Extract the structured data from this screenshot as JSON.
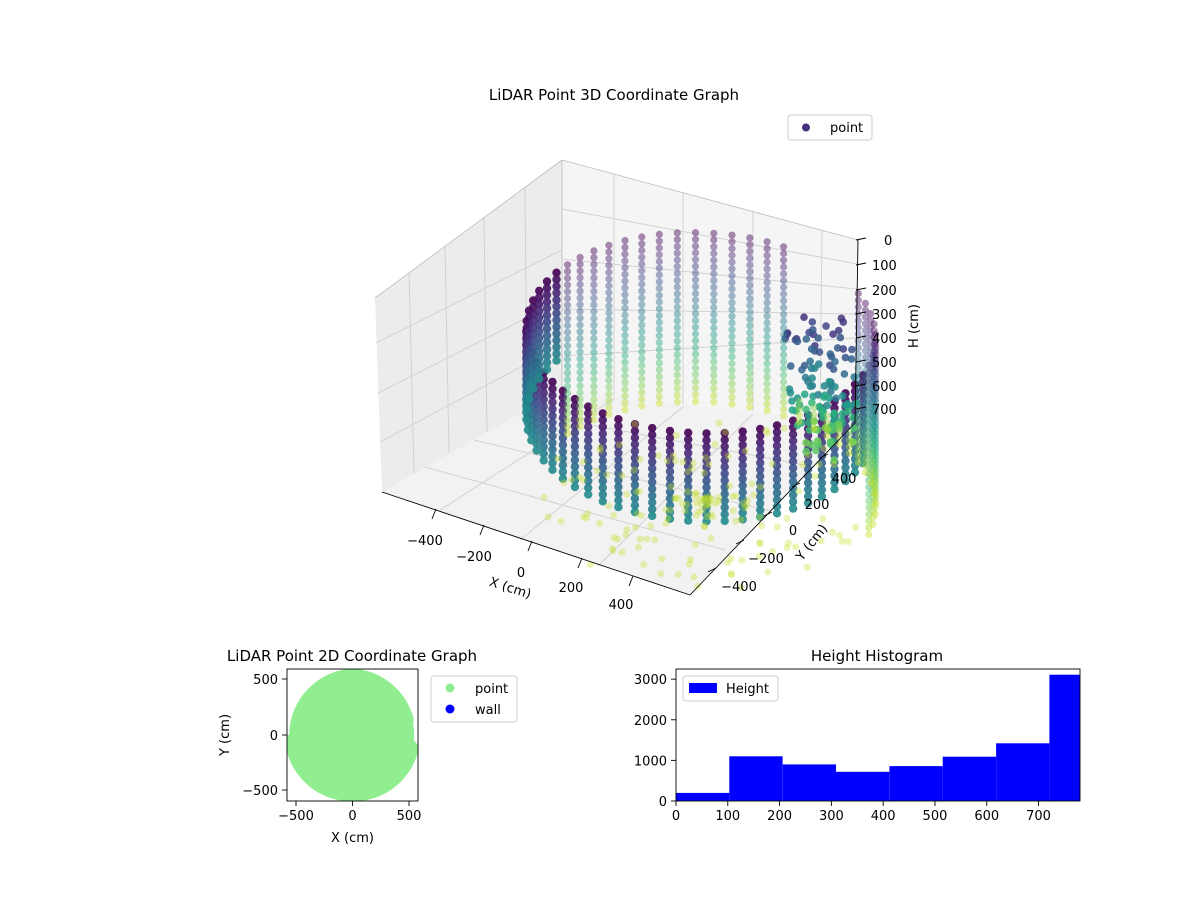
{
  "chart_data": [
    {
      "type": "scatter",
      "projection": "3d",
      "title": "LiDAR Point 3D Coordinate Graph",
      "xlabel": "X (cm)",
      "ylabel": "Y (cm)",
      "zlabel": "H (cm)",
      "x_ticks": [
        -400,
        -200,
        0,
        200,
        400
      ],
      "y_ticks": [
        -400,
        -200,
        0,
        200,
        400
      ],
      "z_ticks": [
        0,
        100,
        200,
        300,
        400,
        500,
        600,
        700
      ],
      "x_tick_labels": [
        "−400",
        "−200",
        "0",
        "200",
        "400"
      ],
      "y_tick_labels": [
        "−400",
        "−200",
        "0",
        "200",
        "400"
      ],
      "z_tick_labels": [
        "0",
        "100",
        "200",
        "300",
        "400",
        "500",
        "600",
        "700"
      ],
      "xlim": [
        -560,
        560
      ],
      "ylim": [
        -560,
        560
      ],
      "zlim": [
        0,
        720
      ],
      "z_inverted": true,
      "colormap": "viridis",
      "legend": [
        {
          "label": "point",
          "color": "#46327e"
        }
      ],
      "legend_position": "upper-right",
      "series": [
        {
          "name": "point",
          "description": "Ring of LiDAR returns around the room wall; radius about 560 cm, heights 0-700 cm, colored by height"
        }
      ],
      "grid": true
    },
    {
      "type": "scatter",
      "title": "LiDAR Point 2D Coordinate Graph",
      "xlabel": "X (cm)",
      "ylabel": "Y (cm)",
      "x_ticks": [
        -500,
        0,
        500
      ],
      "y_ticks": [
        -500,
        0,
        500
      ],
      "x_tick_labels": [
        "−500",
        "0",
        "500"
      ],
      "y_tick_labels": [
        "−500",
        "0",
        "500"
      ],
      "xlim": [
        -590,
        590
      ],
      "ylim": [
        -590,
        590
      ],
      "series": [
        {
          "name": "point",
          "color": "#90ee90"
        },
        {
          "name": "wall",
          "color": "#0000ff"
        }
      ],
      "legend_position": "outside-upper-right"
    },
    {
      "type": "bar",
      "subtype": "histogram",
      "title": "Height Histogram",
      "xlim": [
        0,
        780
      ],
      "ylim": [
        0,
        3250
      ],
      "x_ticks": [
        0,
        100,
        200,
        300,
        400,
        500,
        600,
        700
      ],
      "y_ticks": [
        0,
        1000,
        2000,
        3000
      ],
      "x_tick_labels": [
        "0",
        "100",
        "200",
        "300",
        "400",
        "500",
        "600",
        "700"
      ],
      "y_tick_labels": [
        "0",
        "1000",
        "2000",
        "3000"
      ],
      "bin_edges": [
        0,
        103,
        206,
        309,
        412,
        515,
        618,
        721,
        780
      ],
      "values": [
        200,
        1100,
        900,
        720,
        860,
        1090,
        1420,
        3110
      ],
      "series": [
        {
          "name": "Height",
          "color": "#0000ff"
        }
      ],
      "legend_position": "upper-left"
    }
  ]
}
